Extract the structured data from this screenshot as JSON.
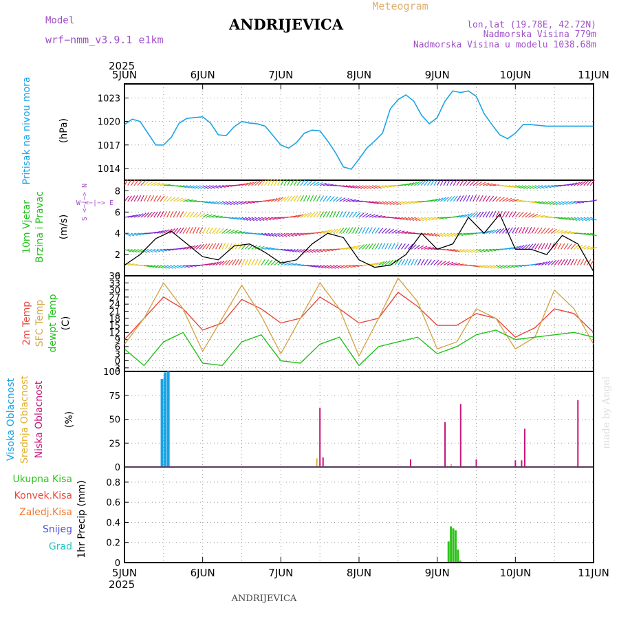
{
  "header": {
    "model_label": "Model",
    "model_name": "wrf−nmm_v3.9.1  e1km",
    "title": "ANDRIJEVICA",
    "subtitle": "Meteogram",
    "lonlat": "lon,lat (19.78E, 42.72N)",
    "altitude": "Nadmorska Visina 779m",
    "model_altitude": "Nadmorska Visina u modelu 1038.68m",
    "watermark": "made by Angel",
    "footer": "ANDRIJEVICA",
    "year": "2025"
  },
  "colors": {
    "pressure": "#1aa3e6",
    "temp2m": "#e8473c",
    "sfc": "#d4a64a",
    "dew": "#21c21a",
    "high_cloud": "#1aa3e6",
    "mid_cloud": "#e0b030",
    "low_cloud": "#c8157a",
    "rain": "#2ec21a"
  },
  "chart_data": [
    {
      "type": "line",
      "panel": "pressure",
      "ylabel_left": "Pritisak na nivou mora",
      "ylabel_unit": "(hPa)",
      "x_ticks": [
        "5JUN",
        "6JUN",
        "7JUN",
        "8JUN",
        "9JUN",
        "10JUN",
        "11JUN"
      ],
      "ylim": [
        1012.5,
        1024.8
      ],
      "y_ticks": [
        1014,
        1017,
        1020,
        1023
      ],
      "x": [
        0,
        0.1,
        0.2,
        0.3,
        0.4,
        0.5,
        0.6,
        0.7,
        0.8,
        0.9,
        1.0,
        1.1,
        1.2,
        1.3,
        1.4,
        1.5,
        1.6,
        1.7,
        1.8,
        1.9,
        2.0,
        2.1,
        2.2,
        2.3,
        2.4,
        2.5,
        2.6,
        2.7,
        2.8,
        2.9,
        3.0,
        3.1,
        3.2,
        3.3,
        3.4,
        3.5,
        3.6,
        3.7,
        3.8,
        3.9,
        4.0,
        4.1,
        4.2,
        4.3,
        4.4,
        4.5,
        4.6,
        4.7,
        4.8,
        4.9,
        5.0,
        5.1,
        5.2,
        5.3,
        5.4,
        5.5,
        5.6,
        5.7,
        5.8,
        5.9,
        6.0
      ],
      "series": [
        {
          "values": [
            1019.6,
            1020.3,
            1020.0,
            1018.5,
            1017.0,
            1017.0,
            1018.0,
            1019.8,
            1020.4,
            1020.5,
            1020.6,
            1019.8,
            1018.3,
            1018.2,
            1019.3,
            1020.0,
            1019.8,
            1019.7,
            1019.4,
            1018.2,
            1017.0,
            1016.6,
            1017.3,
            1018.5,
            1018.9,
            1018.8,
            1017.5,
            1016.0,
            1014.2,
            1013.9,
            1015.2,
            1016.6,
            1017.5,
            1018.5,
            1021.6,
            1022.8,
            1023.4,
            1022.6,
            1020.8,
            1019.7,
            1020.5,
            1022.6,
            1023.9,
            1023.7,
            1023.9,
            1023.2,
            1021.0,
            1019.6,
            1018.3,
            1017.8,
            1018.5,
            1019.6,
            1019.6,
            1019.5,
            1019.4,
            1019.4,
            1019.4,
            1019.4,
            1019.4,
            1019.4,
            1019.4
          ]
        }
      ]
    },
    {
      "type": "line",
      "panel": "wind",
      "ylabel_left": "10m Vjetar",
      "ylabel_left2": "Brzina i Pravac",
      "ylabel_unit": "(m/s)",
      "compass": {
        "n": "N",
        "s": "S",
        "e": "E",
        "w": "W",
        "sw": "W <−|−> E"
      },
      "ylim": [
        0,
        9
      ],
      "y_ticks": [
        0,
        2,
        4,
        6,
        8
      ],
      "x": [
        0,
        0.2,
        0.4,
        0.6,
        0.8,
        1.0,
        1.2,
        1.4,
        1.6,
        1.8,
        2.0,
        2.2,
        2.4,
        2.6,
        2.8,
        3.0,
        3.2,
        3.4,
        3.6,
        3.8,
        4.0,
        4.2,
        4.4,
        4.6,
        4.8,
        5.0,
        5.2,
        5.4,
        5.6,
        5.8,
        6.0
      ],
      "series": [
        {
          "values": [
            1.0,
            2.0,
            3.5,
            4.2,
            3.0,
            1.8,
            1.5,
            2.8,
            3.0,
            2.2,
            1.2,
            1.5,
            3.0,
            4.0,
            3.6,
            1.5,
            0.8,
            1.0,
            2.0,
            4.0,
            2.5,
            3.0,
            5.5,
            4.0,
            5.8,
            2.5,
            2.5,
            2.0,
            3.8,
            3.0,
            0.4
          ]
        }
      ]
    },
    {
      "type": "line",
      "panel": "temperature",
      "ylabel_left": "2m Temp",
      "ylabel_left2": "SFC Temp",
      "ylabel_left3": "dewpt Temp",
      "ylabel_unit": "(C)",
      "ylim": [
        -4.5,
        36
      ],
      "y_ticks": [
        -3,
        0,
        3,
        6,
        9,
        12,
        15,
        18,
        21,
        24,
        27,
        30,
        33,
        36
      ],
      "x": [
        0,
        0.25,
        0.5,
        0.75,
        1.0,
        1.25,
        1.5,
        1.75,
        2.0,
        2.25,
        2.5,
        2.75,
        3.0,
        3.25,
        3.5,
        3.75,
        4.0,
        4.25,
        4.5,
        4.75,
        5.0,
        5.25,
        5.5,
        5.75,
        6.0
      ],
      "series": [
        {
          "name": "2m Temp",
          "values": [
            9,
            18,
            27,
            22,
            13,
            16,
            26,
            22,
            16,
            18,
            27,
            22,
            16,
            18,
            29,
            23,
            15,
            15,
            20,
            18,
            10,
            14,
            22,
            20,
            12
          ]
        },
        {
          "name": "SFC Temp",
          "values": [
            7,
            18,
            33,
            22,
            4,
            18,
            32,
            19,
            3,
            18,
            33,
            22,
            2,
            18,
            35,
            25,
            5,
            8,
            22,
            18,
            5,
            10,
            30,
            22,
            7
          ]
        },
        {
          "name": "dewpt Temp",
          "values": [
            5,
            -2,
            8,
            12,
            -1,
            -2,
            8,
            11,
            0,
            -1,
            7,
            10,
            -2,
            6,
            8,
            10,
            3,
            6,
            11,
            13,
            9,
            10,
            11,
            12,
            10
          ]
        }
      ]
    },
    {
      "type": "bar",
      "panel": "cloud",
      "ylabel_left": "Visoka Oblacnost",
      "ylabel_left2": "Srednja Oblacnost",
      "ylabel_left3": "Niska Oblacnost",
      "ylabel_unit": "(%)",
      "ylim": [
        0,
        100
      ],
      "y_ticks": [
        0,
        25,
        50,
        75,
        100
      ],
      "series": [
        {
          "name": "Visoka Oblacnost",
          "x": [
            0.48,
            0.52,
            0.56
          ],
          "values": [
            92,
            99,
            100
          ]
        },
        {
          "name": "Srednja Oblacnost",
          "x": [
            2.46,
            4.18
          ],
          "values": [
            9,
            3
          ]
        },
        {
          "name": "Niska Oblacnost",
          "x": [
            2.5,
            2.54,
            3.66,
            4.1,
            4.3,
            4.5,
            5.0,
            5.08,
            5.12,
            5.8
          ],
          "values": [
            62,
            10,
            8,
            47,
            66,
            8,
            7,
            7,
            40,
            70
          ]
        }
      ]
    },
    {
      "type": "bar",
      "panel": "precip",
      "ylabel_left": "Ukupna Kisa",
      "ylabel_left2": "Konvek.Kisa",
      "ylabel_left3": "Zaledj.Kisa",
      "ylabel_left4": "Snijeg",
      "ylabel_left5": "Grad",
      "ylabel_unit": "1hr Precip (mm)",
      "ylim": [
        0,
        0.95
      ],
      "y_ticks": [
        0,
        0.2,
        0.4,
        0.6,
        0.8
      ],
      "series": [
        {
          "name": "Ukupna Kisa",
          "x": [
            4.15,
            4.18,
            4.21,
            4.24,
            4.27,
            4.3
          ],
          "values": [
            0.21,
            0.36,
            0.34,
            0.32,
            0.13,
            0.02
          ]
        }
      ]
    }
  ]
}
